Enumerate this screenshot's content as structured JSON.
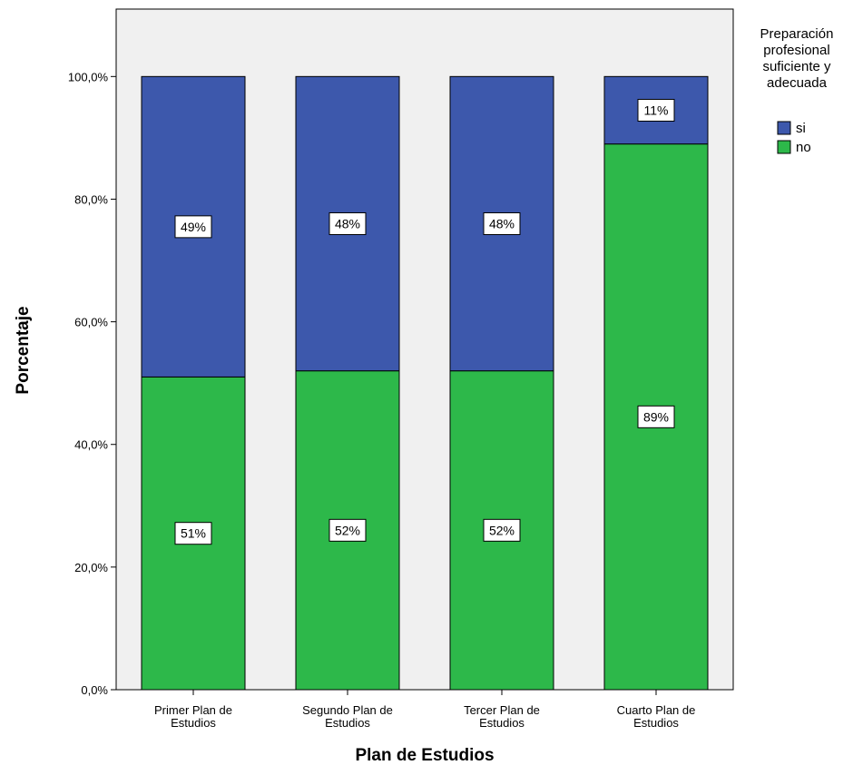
{
  "chart_data": {
    "type": "bar",
    "stacked": true,
    "categories": [
      [
        "Primer Plan de",
        "Estudios"
      ],
      [
        "Segundo Plan de",
        "Estudios"
      ],
      [
        "Tercer Plan de",
        "Estudios"
      ],
      [
        "Cuarto Plan de",
        "Estudios"
      ]
    ],
    "series": [
      {
        "name": "no",
        "values": [
          51,
          52,
          52,
          89
        ],
        "labels": [
          "51%",
          "52%",
          "52%",
          "89%"
        ],
        "color": "#2db84a"
      },
      {
        "name": "si",
        "values": [
          49,
          48,
          48,
          11
        ],
        "labels": [
          "49%",
          "48%",
          "48%",
          "11%"
        ],
        "color": "#3d58ac"
      }
    ],
    "xlabel": "Plan de Estudios",
    "ylabel": "Porcentaje",
    "ylim": [
      0,
      111
    ],
    "yticks": [
      0,
      20,
      40,
      60,
      80,
      100
    ],
    "ytick_labels": [
      "0,0%",
      "20,0%",
      "40,0%",
      "60,0%",
      "80,0%",
      "100,0%"
    ],
    "legend": {
      "title_lines": [
        "Preparación",
        "profesional",
        "suficiente y",
        "adecuada"
      ],
      "position": "right",
      "entries": [
        {
          "label": "si",
          "color": "#3d58ac"
        },
        {
          "label": "no",
          "color": "#2db84a"
        }
      ]
    },
    "plot_background": "#f0f0f0",
    "grid": false
  }
}
